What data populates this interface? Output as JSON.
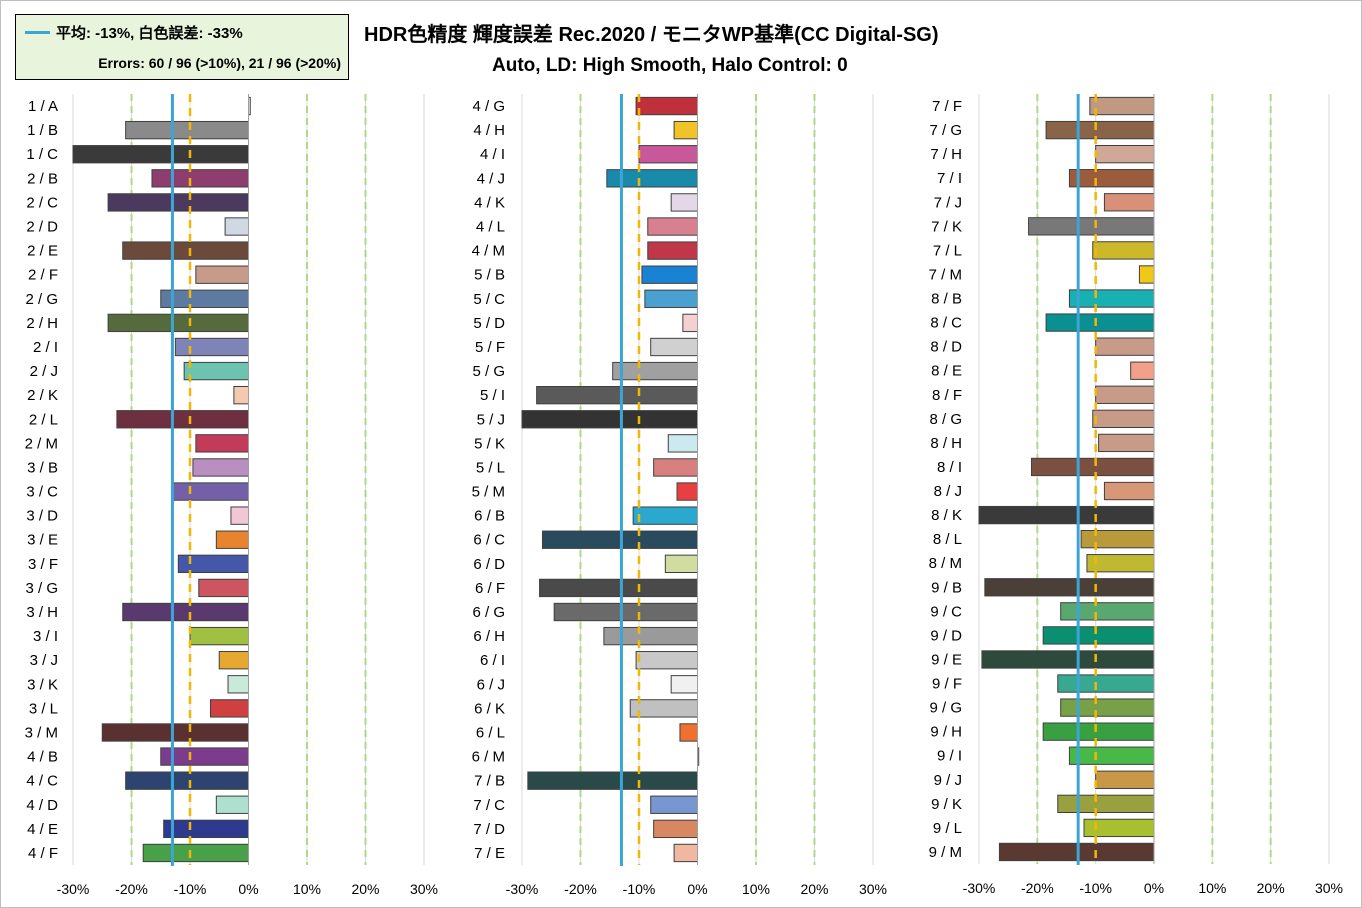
{
  "title": "HDR色精度 輝度誤差 Rec.2020 / モニタWP基準(CC Digital-SG)",
  "subtitle": "Auto, LD: High Smooth, Halo Control: 0",
  "legend": {
    "line1": "平均: -13%, 白色誤差: -33%",
    "line2": "Errors: 60 / 96 (>10%),   21 / 96 (>20%)"
  },
  "colors": {
    "mean_line": "#3aa5d6",
    "threshold_10": "#f2b705",
    "threshold_20": "#a9dc85",
    "gridline": "#d9d9d9",
    "bar_outline": "#404040"
  },
  "chart_data": [
    {
      "type": "bar",
      "orientation": "horizontal",
      "xlim": [
        -30,
        30
      ],
      "ticks": [
        "-30%",
        "-20%",
        "-10%",
        "0%",
        "10%",
        "20%",
        "30%"
      ],
      "mean": -13,
      "categories": [
        "1 / A",
        "1 / B",
        "1 / C",
        "2 / B",
        "2 / C",
        "2 / D",
        "2 / E",
        "2 / F",
        "2 / G",
        "2 / H",
        "2 / I",
        "2 / J",
        "2 / K",
        "2 / L",
        "2 / M",
        "3 / B",
        "3 / C",
        "3 / D",
        "3 / E",
        "3 / F",
        "3 / G",
        "3 / H",
        "3 / I",
        "3 / J",
        "3 / K",
        "3 / L",
        "3 / M",
        "4 / B",
        "4 / C",
        "4 / D",
        "4 / E",
        "4 / F"
      ],
      "values": [
        0.3,
        -21,
        -30,
        -16.5,
        -24,
        -4,
        -21.5,
        -9,
        -15,
        -24,
        -12.5,
        -11,
        -2.5,
        -22.5,
        -9,
        -9.5,
        -13,
        -3,
        -5.5,
        -12,
        -8.5,
        -21.5,
        -10,
        -5,
        -3.5,
        -6.5,
        -25,
        -15,
        -21,
        -5.5,
        -14.5,
        -18
      ],
      "colors": [
        "#f2f2f2",
        "#8a8a8a",
        "#3a3a3a",
        "#8e3e6e",
        "#4b3a5e",
        "#cfd8e3",
        "#6b4a3b",
        "#c89a8a",
        "#5d7ba0",
        "#566b3d",
        "#7f84b8",
        "#6cc3b0",
        "#f5c9b0",
        "#6e3040",
        "#c23b5a",
        "#b98ec0",
        "#7460a8",
        "#f2c6d6",
        "#e8832e",
        "#4457a8",
        "#cc5560",
        "#5a3a6e",
        "#9fc040",
        "#e6a830",
        "#c8ead8",
        "#d04040",
        "#5a3030",
        "#7b3c8e",
        "#2e4470",
        "#aee0d0",
        "#2d3a8e",
        "#48a048"
      ]
    },
    {
      "type": "bar",
      "orientation": "horizontal",
      "xlim": [
        -30,
        30
      ],
      "ticks": [
        "-30%",
        "-20%",
        "-10%",
        "0%",
        "10%",
        "20%",
        "30%"
      ],
      "mean": -13,
      "categories": [
        "4 / G",
        "4 / H",
        "4 / I",
        "4 / J",
        "4 / K",
        "4 / L",
        "4 / M",
        "5 / B",
        "5 / C",
        "5 / D",
        "5 / F",
        "5 / G",
        "5 / I",
        "5 / J",
        "5 / K",
        "5 / L",
        "5 / M",
        "6 / B",
        "6 / C",
        "6 / D",
        "6 / F",
        "6 / G",
        "6 / H",
        "6 / I",
        "6 / J",
        "6 / K",
        "6 / L",
        "6 / M",
        "7 / B",
        "7 / C",
        "7 / D",
        "7 / E"
      ],
      "values": [
        -10.5,
        -4,
        -10,
        -15.5,
        -4.5,
        -8.5,
        -8.5,
        -9.5,
        -9,
        -2.5,
        -8,
        -14.5,
        -27.5,
        -30,
        -5,
        -7.5,
        -3.5,
        -11,
        -26.5,
        -5.5,
        -27,
        -24.5,
        -16,
        -10.5,
        -4.5,
        -11.5,
        -3,
        0.2,
        -29,
        -8,
        -7.5,
        -4
      ],
      "colors": [
        "#c0303a",
        "#f0c428",
        "#c8589a",
        "#1a8aaa",
        "#e3d7e8",
        "#d88090",
        "#c0374a",
        "#1a82d2",
        "#4aa0d0",
        "#f5d0d0",
        "#d0d0d0",
        "#a0a0a0",
        "#5a5a5a",
        "#333333",
        "#cde9f0",
        "#d88080",
        "#e84040",
        "#2aa8d0",
        "#2a4a5e",
        "#d0dca0",
        "#4a4a4a",
        "#6a6a6a",
        "#9a9a9a",
        "#c8c8c8",
        "#f0f0f0",
        "#c0c0c0",
        "#f07030",
        "#ffffff",
        "#2a4a4a",
        "#7896d0",
        "#d88860",
        "#f0b8a0"
      ]
    },
    {
      "type": "bar",
      "orientation": "horizontal",
      "xlim": [
        -30,
        30
      ],
      "ticks": [
        "-30%",
        "-20%",
        "-10%",
        "0%",
        "10%",
        "20%",
        "30%"
      ],
      "mean": -13,
      "categories": [
        "7 / F",
        "7 / G",
        "7 / H",
        "7 / I",
        "7 / J",
        "7 / K",
        "7 / L",
        "7 / M",
        "8 / B",
        "8 / C",
        "8 / D",
        "8 / E",
        "8 / F",
        "8 / G",
        "8 / H",
        "8 / I",
        "8 / J",
        "8 / K",
        "8 / L",
        "8 / M",
        "9 / B",
        "9 / C",
        "9 / D",
        "9 / E",
        "9 / F",
        "9 / G",
        "9 / H",
        "9 / I",
        "9 / J",
        "9 / K",
        "9 / L",
        "9 / M"
      ],
      "values": [
        -11,
        -18.5,
        -10,
        -14.5,
        -8.5,
        -21.5,
        -10.5,
        -2.5,
        -14.5,
        -18.5,
        -10,
        -4,
        -10,
        -10.5,
        -9.5,
        -21,
        -8.5,
        -30,
        -12.5,
        -11.5,
        -29,
        -16,
        -19,
        -29.5,
        -16.5,
        -16,
        -19,
        -14.5,
        -10,
        -16.5,
        -12,
        -26.5
      ],
      "colors": [
        "#c09a80",
        "#8a6448",
        "#d0a898",
        "#9a5c3c",
        "#d89078",
        "#787878",
        "#ccb828",
        "#f0c818",
        "#18b0b0",
        "#0a9090",
        "#c89a88",
        "#f2a08a",
        "#c89a88",
        "#c89a88",
        "#c89a88",
        "#7c5040",
        "#d89878",
        "#3a3a3a",
        "#b89a3a",
        "#c0b830",
        "#4a4038",
        "#58a870",
        "#0a9070",
        "#2e4a3c",
        "#38a890",
        "#78a048",
        "#38a040",
        "#48b848",
        "#c89848",
        "#98a040",
        "#a8c030",
        "#5a3a30"
      ]
    }
  ]
}
